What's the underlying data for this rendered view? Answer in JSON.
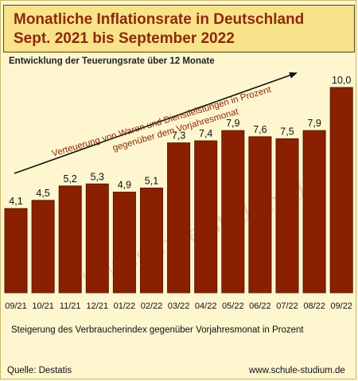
{
  "header": {
    "title_line1": "Monatliche Inflationsrate in Deutschland",
    "title_line2": "Sept. 2021 bis September 2022"
  },
  "subtitle": "Entwicklung der Teuerungsrate über 12 Monate",
  "annotation": {
    "line1": "Verteuerung von Waren und Dienstleistungen in Prozent",
    "line2": "gegenüber dem Vorjahresmonat"
  },
  "watermark": "www.schule-studium.de",
  "caption": "Steigerung des Verbraucherindex gegenüber Vorjahresmonat  in Prozent",
  "source": "Quelle: Destatis",
  "website": "www.schule-studium.de",
  "colors": {
    "bar": "#8b2000",
    "bar_outline": "#5a1400",
    "title_text": "#8c2a0b",
    "title_box": "#f8e28a",
    "background": "#fdf6cf",
    "annotation_text": "#8c2a0b"
  },
  "chart_data": {
    "type": "bar",
    "categories": [
      "09/21",
      "10/21",
      "11/21",
      "12/21",
      "01/22",
      "02/22",
      "03/22",
      "04/22",
      "05/22",
      "06/22",
      "07/22",
      "08/22",
      "09/22"
    ],
    "values": [
      4.1,
      4.5,
      5.2,
      5.3,
      4.9,
      5.1,
      7.3,
      7.4,
      7.9,
      7.6,
      7.5,
      7.9,
      10.0
    ],
    "labels": [
      "4,1",
      "4,5",
      "5,2",
      "5,3",
      "4,9",
      "5,1",
      "7,3",
      "7,4",
      "7,9",
      "7,6",
      "7,5",
      "7,9",
      "10,0"
    ],
    "ylim": [
      0,
      10
    ],
    "grid": false
  }
}
